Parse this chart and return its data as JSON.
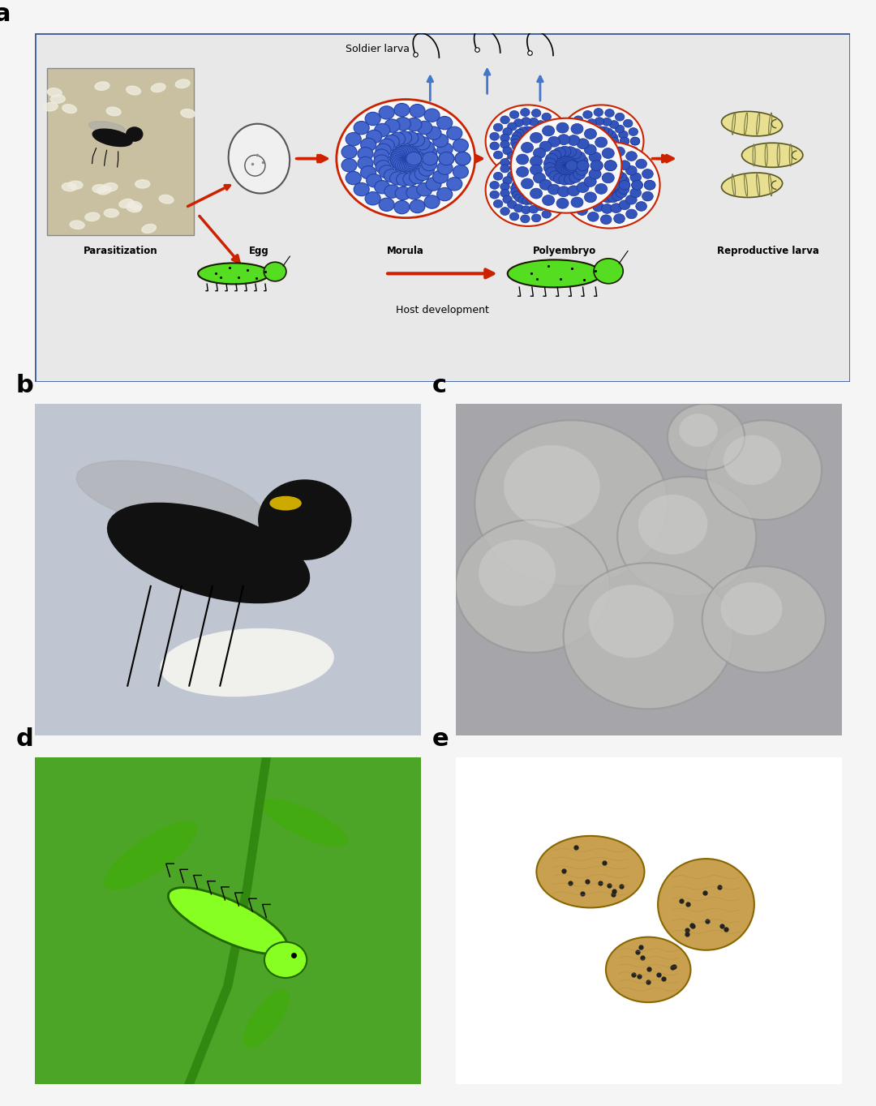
{
  "bg_color": "#f0f0f0",
  "panel_a_bg": "#e8e8e8",
  "panel_a_border": "#3a5fa0",
  "label_a": "a",
  "label_b": "b",
  "label_c": "c",
  "label_d": "d",
  "label_e": "e",
  "label_fontsize": 22,
  "diagram_labels": [
    "Parasitization",
    "Egg",
    "Morula",
    "Polyembryo",
    "Reproductive larva"
  ],
  "soldier_label": "Soldier larva",
  "host_label": "Host development",
  "arrow_color_red": "#cc2200",
  "arrow_color_blue": "#4477cc",
  "morula_color": "#3355aa",
  "morula_bg": "#cc3333",
  "egg_outline": "#555555",
  "repro_larva_color": "#e8e0a0",
  "repro_larva_outline": "#555555",
  "caterpillar_color": "#44cc22",
  "caterpillar_outline": "#222222"
}
